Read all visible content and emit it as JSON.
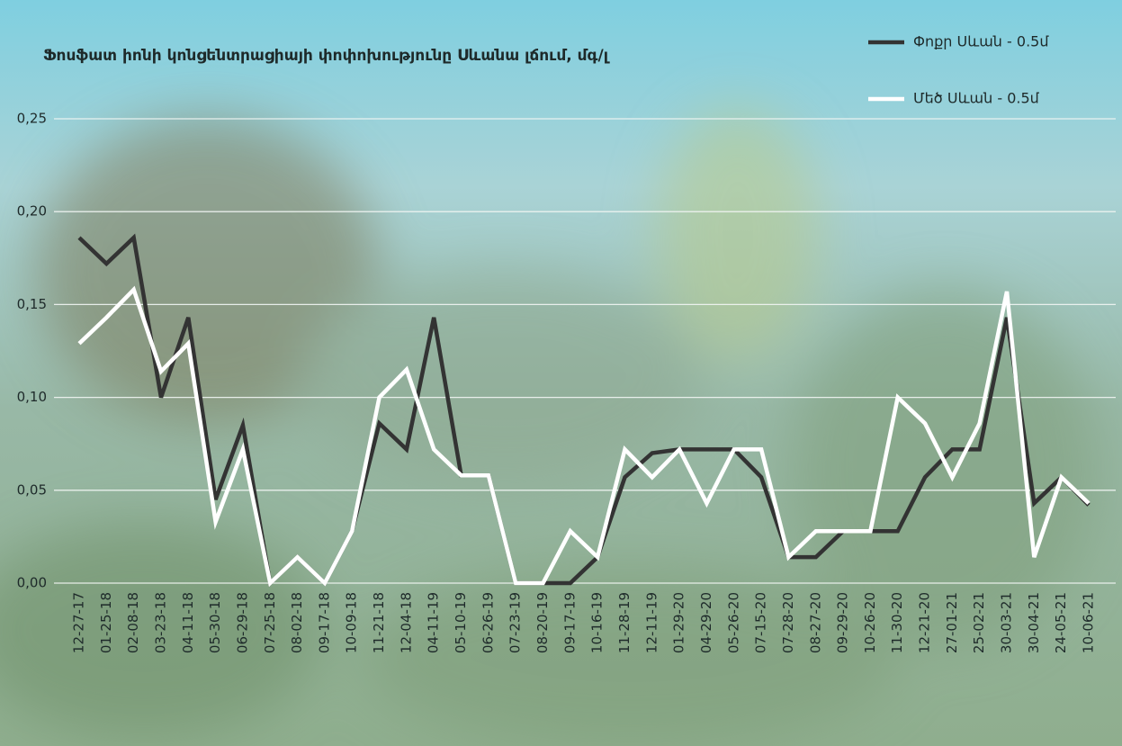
{
  "chart_data": {
    "type": "line",
    "title": "Ֆոսֆատ իոնի կոնցենտրացիայի փոփոխությունը Սևանա լճում, մգ/լ",
    "categories": [
      "12-27-17",
      "01-25-18",
      "02-08-18",
      "03-23-18",
      "04-11-18",
      "05-30-18",
      "06-29-18",
      "07-25-18",
      "08-02-18",
      "09-17-18",
      "10-09-18",
      "11-21-18",
      "12-04-18",
      "04-11-19",
      "05-10-19",
      "06-26-19",
      "07-23-19",
      "08-20-19",
      "09-17-19",
      "10-16-19",
      "11-28-19",
      "12-11-19",
      "01-29-20",
      "04-29-20",
      "05-26-20",
      "07-15-20",
      "07-28-20",
      "08-27-20",
      "09-29-20",
      "10-26-20",
      "11-30-20",
      "12-21-20",
      "27-01-21",
      "25-02-21",
      "30-03-21",
      "30-04-21",
      "24-05-21",
      "10-06-21"
    ],
    "series": [
      {
        "name": "Փոքր Սևան - 0.5մ",
        "color": "#333333",
        "values": [
          0.186,
          0.172,
          0.186,
          0.1,
          0.143,
          0.045,
          0.085,
          0,
          0.014,
          0,
          0.028,
          0.086,
          0.072,
          0.143,
          0.058,
          0.058,
          0,
          0,
          0,
          0.014,
          0.057,
          0.07,
          0.072,
          0.072,
          0.072,
          0.057,
          0.014,
          0.014,
          0.028,
          0.028,
          0.028,
          0.057,
          0.072,
          0.072,
          0.143,
          0.043,
          0.057,
          0.042
        ]
      },
      {
        "name": "Մեծ Սևան - 0.5մ",
        "color": "#ffffff",
        "values": [
          0.129,
          0.143,
          0.158,
          0.114,
          0.129,
          0.033,
          0.072,
          0,
          0.014,
          0,
          0.028,
          0.1,
          0.115,
          0.072,
          0.058,
          0.058,
          0,
          0,
          0.028,
          0.014,
          0.072,
          0.057,
          0.072,
          0.043,
          0.072,
          0.072,
          0.014,
          0.028,
          0.028,
          0.028,
          0.1,
          0.086,
          0.057,
          0.086,
          0.157,
          0.014,
          0.057,
          0.043
        ]
      }
    ],
    "ylim": [
      0,
      0.25
    ],
    "yticks": [
      {
        "value": 0,
        "label": "0,00"
      },
      {
        "value": 0.05,
        "label": "0,05"
      },
      {
        "value": 0.1,
        "label": "0,10"
      },
      {
        "value": 0.15,
        "label": "0,15"
      },
      {
        "value": 0.2,
        "label": "0,20"
      },
      {
        "value": 0.25,
        "label": "0,25"
      }
    ],
    "grid": true,
    "legend": "top-right"
  }
}
